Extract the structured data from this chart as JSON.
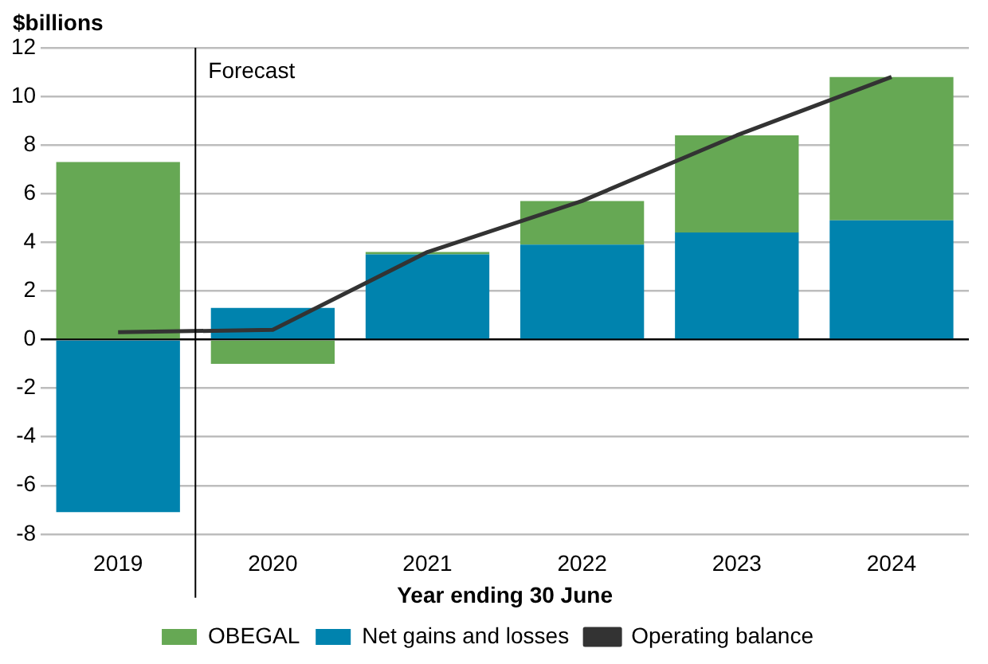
{
  "chart_data": {
    "type": "bar",
    "ylabel": "$billions",
    "xlabel": "Year ending 30 June",
    "categories": [
      "2019",
      "2020",
      "2021",
      "2022",
      "2023",
      "2024"
    ],
    "stacked": true,
    "series": [
      {
        "name": "Net gains and losses",
        "color": "#0083ae",
        "values": [
          -7.1,
          1.3,
          3.5,
          3.9,
          4.4,
          4.9
        ]
      },
      {
        "name": "OBEGAL",
        "color": "#66a854",
        "values": [
          7.3,
          -1.0,
          0.1,
          1.8,
          4.0,
          5.9
        ]
      },
      {
        "name": "Operating balance",
        "type": "line",
        "color": "#333333",
        "values": [
          0.3,
          0.4,
          3.6,
          5.7,
          8.4,
          10.8
        ]
      }
    ],
    "ylim": [
      -8,
      12
    ],
    "yticks": [
      -8,
      -6,
      -4,
      -2,
      0,
      2,
      4,
      6,
      8,
      10,
      12
    ],
    "grid": "y",
    "legend": "bottom",
    "marker": "none",
    "ref_lines": [
      {
        "axis": "x",
        "value": "2020",
        "label": "Forecast",
        "color": "#000000"
      }
    ]
  }
}
